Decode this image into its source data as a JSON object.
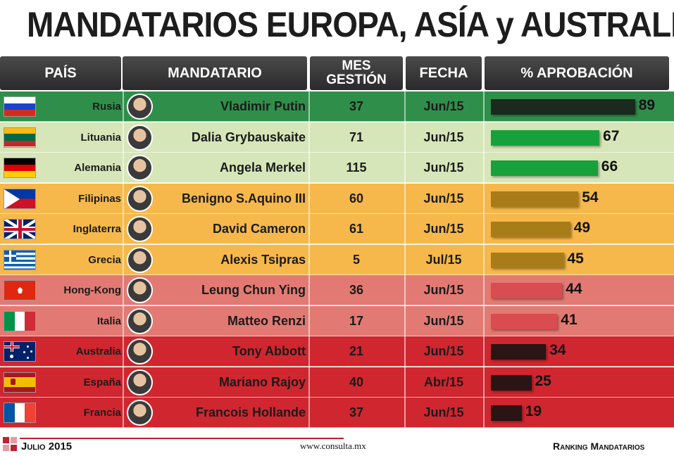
{
  "title": "MANDATARIOS EUROPA, ASÍA y AUSTRALIA",
  "headers": {
    "pais": "PAÍS",
    "mandatario": "MANDATARIO",
    "mes_line1": "MES",
    "mes_line2": "GESTIÓN",
    "fecha": "FECHA",
    "aprobacion": "% APROBACIÓN"
  },
  "rows": [
    {
      "country": "Rusia",
      "leader": "Vladimir Putin",
      "months": "37",
      "date": "Jun/15",
      "approval": "89",
      "flag": "russia-flag",
      "row_color": "#2f8f4a",
      "bar_color": "#1a2a1e"
    },
    {
      "country": "Lituania",
      "leader": "Dalia Grybauskaite",
      "months": "71",
      "date": "Jun/15",
      "approval": "67",
      "flag": "lithuania-flag",
      "row_color": "#d7e6b8",
      "bar_color": "#17a13a"
    },
    {
      "country": "Alemania",
      "leader": "Angela Merkel",
      "months": "115",
      "date": "Jun/15",
      "approval": "66",
      "flag": "germany-flag",
      "row_color": "#d7e6b8",
      "bar_color": "#17a13a"
    },
    {
      "country": "Filipinas",
      "leader": "Benigno S.Aquino III",
      "months": "60",
      "date": "Jun/15",
      "approval": "54",
      "flag": "philippines-flag",
      "row_color": "#f6b84b",
      "bar_color": "#a87d19"
    },
    {
      "country": "Inglaterra",
      "leader": "David Cameron",
      "months": "61",
      "date": "Jun/15",
      "approval": "49",
      "flag": "uk-flag",
      "row_color": "#f6b84b",
      "bar_color": "#a87d19"
    },
    {
      "country": "Grecia",
      "leader": "Alexis Tsipras",
      "months": "5",
      "date": "Jul/15",
      "approval": "45",
      "flag": "greece-flag",
      "row_color": "#f6b84b",
      "bar_color": "#a87d19"
    },
    {
      "country": "Hong-Kong",
      "leader": "Leung Chun Ying",
      "months": "36",
      "date": "Jun/15",
      "approval": "44",
      "flag": "hongkong-flag",
      "row_color": "#e27a73",
      "bar_color": "#d94c50"
    },
    {
      "country": "Italia",
      "leader": "Matteo Renzi",
      "months": "17",
      "date": "Jun/15",
      "approval": "41",
      "flag": "italy-flag",
      "row_color": "#e27a73",
      "bar_color": "#d94c50"
    },
    {
      "country": "Australia",
      "leader": "Tony Abbott",
      "months": "21",
      "date": "Jun/15",
      "approval": "34",
      "flag": "australia-flag",
      "row_color": "#d0262f",
      "bar_color": "#2a1414"
    },
    {
      "country": "España",
      "leader": "Mariano Rajoy",
      "months": "40",
      "date": "Abr/15",
      "approval": "25",
      "flag": "spain-flag",
      "row_color": "#d0262f",
      "bar_color": "#2a1414"
    },
    {
      "country": "Francia",
      "leader": "Francois Hollande",
      "months": "37",
      "date": "Jun/15",
      "approval": "19",
      "flag": "france-flag",
      "row_color": "#d0262f",
      "bar_color": "#2a1414"
    }
  ],
  "chart_data": {
    "type": "bar",
    "title": "MANDATARIOS EUROPA, ASÍA y AUSTRALIA",
    "categories": [
      "Rusia",
      "Lituania",
      "Alemania",
      "Filipinas",
      "Inglaterra",
      "Grecia",
      "Hong-Kong",
      "Italia",
      "Australia",
      "España",
      "Francia"
    ],
    "values": [
      89,
      67,
      66,
      54,
      49,
      45,
      44,
      41,
      34,
      25,
      19
    ],
    "xlabel": "",
    "ylabel": "% APROBACIÓN"
  },
  "footer": {
    "date": "Julio 2015",
    "url": "www.consulta.mx",
    "label": "Ranking Mandatarios"
  }
}
